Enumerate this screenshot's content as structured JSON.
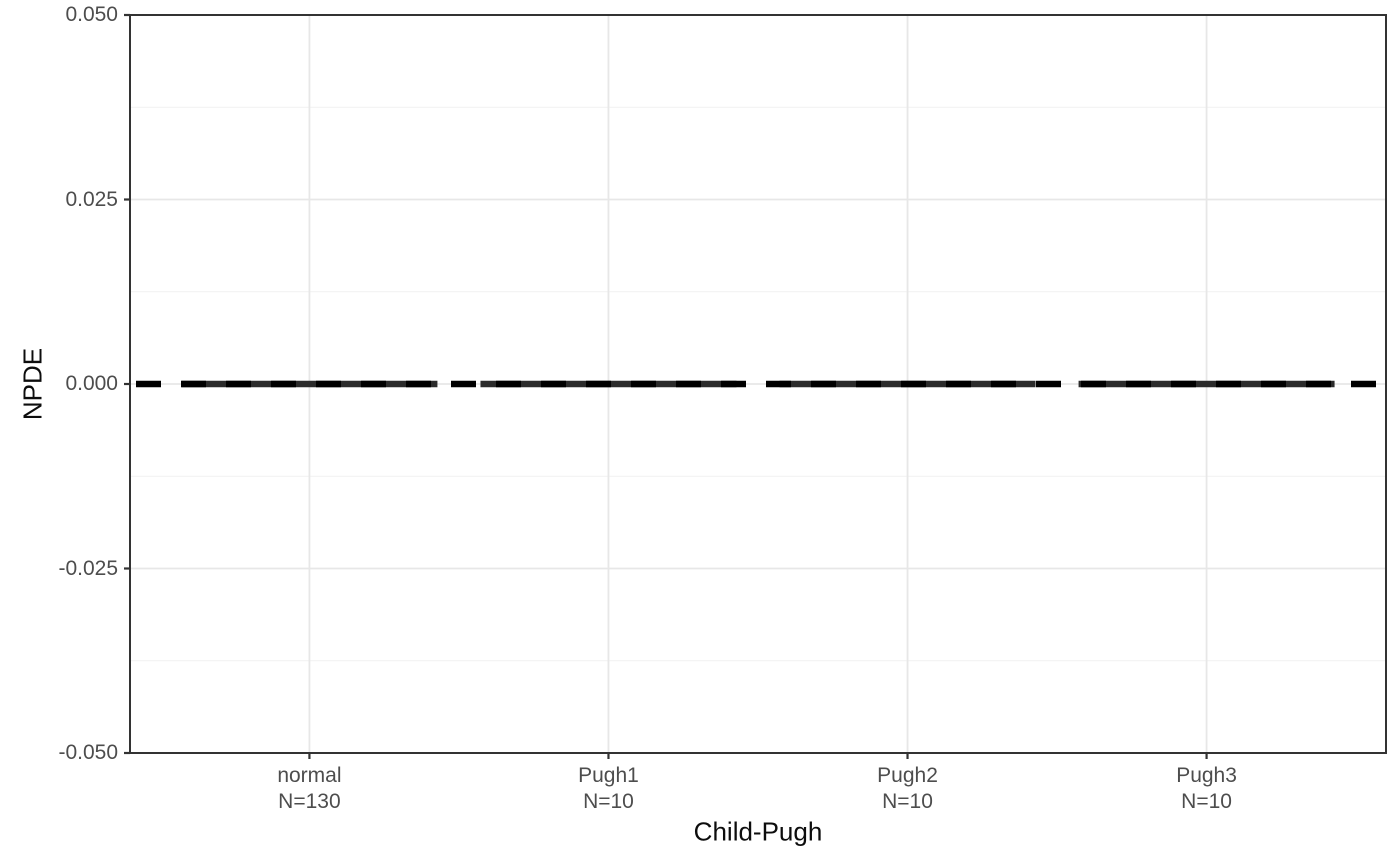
{
  "chart_data": {
    "type": "line",
    "title": "",
    "xlabel": "Child-Pugh",
    "ylabel": "NPDE",
    "categories": [
      "normal",
      "Pugh1",
      "Pugh2",
      "Pugh3"
    ],
    "category_counts": [
      "N=130",
      "N=10",
      "N=10",
      "N=10"
    ],
    "series": [
      {
        "name": "NPDE group segments",
        "values": [
          0,
          0,
          0,
          0
        ]
      }
    ],
    "reference_line": {
      "y": 0,
      "linetype": "dashed",
      "color": "#000000"
    },
    "y_ticks": [
      0.05,
      0.025,
      0.0,
      -0.025,
      -0.05
    ],
    "y_tick_labels": [
      "0.050",
      "0.025",
      "0.000",
      "-0.025",
      "-0.050"
    ],
    "y_minor_ticks": [
      0.0375,
      0.0125,
      -0.0125,
      -0.0375
    ],
    "ylim": [
      -0.05,
      0.05
    ],
    "grid": true,
    "legend": false
  },
  "colors": {
    "panel_background": "#ffffff",
    "panel_border": "#333333",
    "grid_major": "#e7e7e7",
    "grid_minor": "#f1f1f1",
    "tick_mark": "#333333",
    "tick_text": "#4d4d4d",
    "axis_title_text": "#0d0d0d",
    "reference_dash": "#000000",
    "group_segment": "#2b2b2b"
  }
}
